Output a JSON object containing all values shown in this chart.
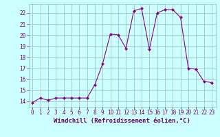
{
  "x": [
    0,
    1,
    2,
    3,
    4,
    5,
    6,
    7,
    8,
    9,
    10,
    11,
    12,
    13,
    14,
    15,
    16,
    17,
    18,
    19,
    20,
    21,
    22,
    23
  ],
  "y": [
    13.9,
    14.3,
    14.1,
    14.3,
    14.3,
    14.3,
    14.3,
    14.3,
    15.5,
    17.4,
    20.1,
    20.0,
    18.8,
    22.2,
    22.4,
    18.7,
    22.0,
    22.3,
    22.3,
    21.6,
    17.0,
    16.9,
    15.8,
    15.7
  ],
  "line_color": "#880088",
  "marker": "D",
  "marker_size": 2.0,
  "bg_color": "#ccffff",
  "grid_color": "#99bbbb",
  "xlabel": "Windchill (Refroidissement éolien,°C)",
  "xlim": [
    -0.5,
    23.5
  ],
  "ylim": [
    13.5,
    22.8
  ],
  "yticks": [
    14,
    15,
    16,
    17,
    18,
    19,
    20,
    21,
    22
  ],
  "xticks": [
    0,
    1,
    2,
    3,
    4,
    5,
    6,
    7,
    8,
    9,
    10,
    11,
    12,
    13,
    14,
    15,
    16,
    17,
    18,
    19,
    20,
    21,
    22,
    23
  ],
  "tick_fontsize": 5.5,
  "xlabel_fontsize": 6.5,
  "tick_color": "#660066",
  "label_color": "#660066",
  "linewidth": 0.8
}
